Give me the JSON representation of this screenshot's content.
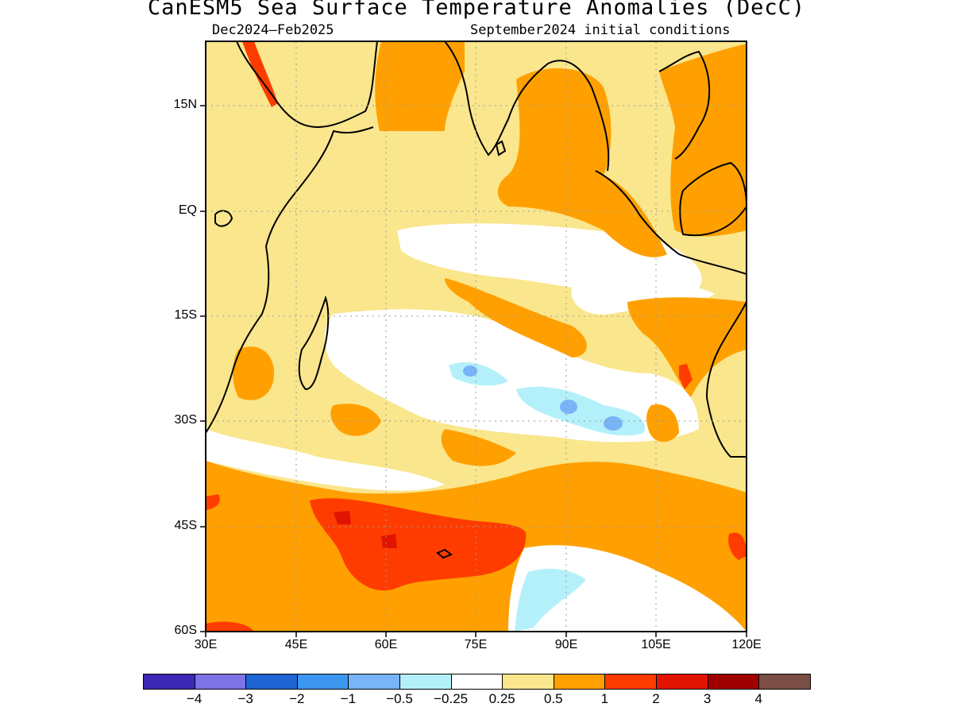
{
  "header": {
    "title": "CanESM5 Sea Surface Temperature Anomalies (DecC)",
    "period": "Dec2024–Feb2025",
    "initial": "September2024 initial conditions"
  },
  "map": {
    "y_ticks": [
      "15N",
      "EQ",
      "15S",
      "30S",
      "45S",
      "60S"
    ],
    "x_ticks": [
      "30E",
      "45E",
      "60E",
      "75E",
      "90E",
      "105E",
      "120E"
    ],
    "lon_range": [
      30,
      120
    ],
    "lat_range": [
      -60,
      24
    ]
  },
  "colorbar": {
    "colors": [
      "#3c28b4",
      "#7d72e6",
      "#1e64d2",
      "#3c96f0",
      "#78b4f8",
      "#b4f0fa",
      "#ffffff",
      "#fae68c",
      "#ffa000",
      "#ff3c00",
      "#e01400",
      "#a00000",
      "#7b4f45"
    ],
    "labels": [
      "−4",
      "−3",
      "−2",
      "−1",
      "−0.5",
      "−0.25",
      "0.25",
      "0.5",
      "1",
      "2",
      "3",
      "4"
    ]
  }
}
